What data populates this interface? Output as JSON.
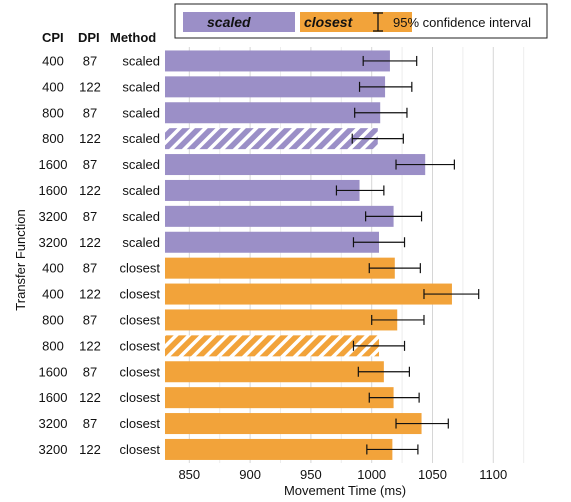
{
  "chart_data": {
    "type": "bar",
    "orientation": "horizontal",
    "title": "",
    "xlabel": "Movement Time (ms)",
    "ylabel": "Transfer Function",
    "xlim": [
      830,
      1145
    ],
    "xticks": [
      850,
      900,
      950,
      1000,
      1050,
      1100
    ],
    "grid": true,
    "legend_position": "top",
    "legend": {
      "items": [
        {
          "label": "scaled",
          "color": "#9b8fc7"
        },
        {
          "label": "closest",
          "color": "#f2a33a"
        }
      ],
      "ci_label": "95% confidence interval"
    },
    "column_headers": [
      "CPI",
      "DPI",
      "Method"
    ],
    "rows": [
      {
        "cpi": "400",
        "dpi": "87",
        "method": "scaled",
        "value": 1015,
        "ci": [
          993,
          1037
        ],
        "hatched": false
      },
      {
        "cpi": "400",
        "dpi": "122",
        "method": "scaled",
        "value": 1011,
        "ci": [
          990,
          1033
        ],
        "hatched": false
      },
      {
        "cpi": "800",
        "dpi": "87",
        "method": "scaled",
        "value": 1007,
        "ci": [
          986,
          1029
        ],
        "hatched": false
      },
      {
        "cpi": "800",
        "dpi": "122",
        "method": "scaled",
        "value": 1005,
        "ci": [
          984,
          1026
        ],
        "hatched": true
      },
      {
        "cpi": "1600",
        "dpi": "87",
        "method": "scaled",
        "value": 1044,
        "ci": [
          1020,
          1068
        ],
        "hatched": false
      },
      {
        "cpi": "1600",
        "dpi": "122",
        "method": "scaled",
        "value": 990,
        "ci": [
          971,
          1010
        ],
        "hatched": false
      },
      {
        "cpi": "3200",
        "dpi": "87",
        "method": "scaled",
        "value": 1018,
        "ci": [
          995,
          1041
        ],
        "hatched": false
      },
      {
        "cpi": "3200",
        "dpi": "122",
        "method": "scaled",
        "value": 1006,
        "ci": [
          985,
          1027
        ],
        "hatched": false
      },
      {
        "cpi": "400",
        "dpi": "87",
        "method": "closest",
        "value": 1019,
        "ci": [
          998,
          1040
        ],
        "hatched": false
      },
      {
        "cpi": "400",
        "dpi": "122",
        "method": "closest",
        "value": 1066,
        "ci": [
          1043,
          1088
        ],
        "hatched": false
      },
      {
        "cpi": "800",
        "dpi": "87",
        "method": "closest",
        "value": 1021,
        "ci": [
          1000,
          1043
        ],
        "hatched": false
      },
      {
        "cpi": "800",
        "dpi": "122",
        "method": "closest",
        "value": 1006,
        "ci": [
          985,
          1027
        ],
        "hatched": true
      },
      {
        "cpi": "1600",
        "dpi": "87",
        "method": "closest",
        "value": 1010,
        "ci": [
          989,
          1031
        ],
        "hatched": false
      },
      {
        "cpi": "1600",
        "dpi": "122",
        "method": "closest",
        "value": 1018,
        "ci": [
          998,
          1039
        ],
        "hatched": false
      },
      {
        "cpi": "3200",
        "dpi": "87",
        "method": "closest",
        "value": 1041,
        "ci": [
          1020,
          1063
        ],
        "hatched": false
      },
      {
        "cpi": "3200",
        "dpi": "122",
        "method": "closest",
        "value": 1017,
        "ci": [
          996,
          1038
        ],
        "hatched": false
      }
    ]
  }
}
